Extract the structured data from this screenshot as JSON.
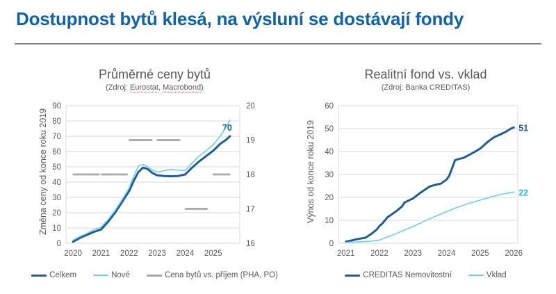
{
  "page": {
    "title": "Dostupnost bytů klesá, na výsluní se dostávají fondy",
    "title_color": "#1062AB",
    "separator_color": "#7F7F7F",
    "background": "#FFFFFF"
  },
  "colors": {
    "grid": "#D9D9D9",
    "axis_text": "#595959",
    "dark_blue": "#1F5C99",
    "light_cyan": "#6FCFE2",
    "gray_series": "#A6A6A6"
  },
  "chart_data": [
    {
      "type": "line",
      "title": "Průměrné ceny bytů",
      "subtitle_parts": [
        {
          "text": "(Zdroj: "
        },
        {
          "text": "Eurostat",
          "underline": true
        },
        {
          "text": ", "
        },
        {
          "text": "Macrobond",
          "underline": true
        },
        {
          "text": ")"
        }
      ],
      "ylabel": "Změna ceny od konce roku 2019",
      "axes": {
        "x": {
          "min": 2019.75,
          "max": 2025.95,
          "ticks": [
            2020,
            2021,
            2022,
            2023,
            2024,
            2025
          ]
        },
        "y_left": {
          "min": 0,
          "max": 90,
          "ticks": [
            0,
            10,
            20,
            30,
            40,
            50,
            60,
            70,
            80,
            90
          ]
        },
        "y_right": {
          "min": 16,
          "max": 20,
          "ticks": [
            16,
            17,
            18,
            19,
            20
          ]
        }
      },
      "series": [
        {
          "name": "Celkem",
          "color": "#1F5C99",
          "width": 3,
          "axis": "left",
          "x": [
            2020,
            2020.25,
            2020.5,
            2020.75,
            2021,
            2021.25,
            2021.5,
            2021.75,
            2022,
            2022.17,
            2022.33,
            2022.5,
            2022.67,
            2022.83,
            2023,
            2023.25,
            2023.5,
            2023.75,
            2024,
            2024.25,
            2024.5,
            2024.75,
            2025,
            2025.25,
            2025.45,
            2025.6
          ],
          "values": [
            1,
            3.5,
            5.5,
            7.5,
            9,
            14,
            20,
            27,
            34,
            41,
            46.5,
            49.5,
            48.5,
            46,
            44.5,
            44,
            43.8,
            44,
            45,
            49.5,
            53.5,
            57,
            60.5,
            65,
            67.5,
            70
          ],
          "end_label": {
            "text": "70",
            "dx": -4,
            "dy": -8,
            "color": "#1F5C99"
          }
        },
        {
          "name": "Nové",
          "color": "#6FCFE2",
          "width": 1.6,
          "axis": "left",
          "x": [
            2020,
            2020.25,
            2020.5,
            2020.75,
            2021,
            2021.25,
            2021.5,
            2021.75,
            2022,
            2022.17,
            2022.33,
            2022.5,
            2022.67,
            2022.83,
            2023,
            2023.25,
            2023.5,
            2023.75,
            2024,
            2024.25,
            2024.5,
            2024.75,
            2025,
            2025.25,
            2025.45,
            2025.6
          ],
          "values": [
            2,
            4.5,
            6.5,
            9,
            10.5,
            15.5,
            21.5,
            28.5,
            36,
            44,
            50.5,
            51.5,
            50,
            48,
            46.5,
            47.5,
            48.3,
            47.8,
            47.5,
            52.5,
            57,
            60.5,
            64.5,
            70,
            75.5,
            80.5
          ]
        },
        {
          "name": "Cena bytů vs. příjem (PHA, PO)",
          "color": "#A6A6A6",
          "width": 2.8,
          "axis": "right",
          "segments": [
            [
              2020.02,
              2020.92,
              18
            ],
            [
              2021.02,
              2021.92,
              18
            ],
            [
              2022.02,
              2022.8,
              19
            ],
            [
              2023.02,
              2023.8,
              19
            ],
            [
              2024.02,
              2024.78,
              17
            ],
            [
              2025.02,
              2025.58,
              18
            ]
          ]
        }
      ]
    },
    {
      "type": "line",
      "title": "Realitní fond vs. vklad",
      "subtitle_parts": [
        {
          "text": "(Zdroj: Banka CREDITAS)"
        }
      ],
      "ylabel": "Výnos od konce roku 2019",
      "axes": {
        "x": {
          "min": 2020.78,
          "max": 2026.12,
          "ticks": [
            2021,
            2022,
            2023,
            2024,
            2025,
            2026
          ]
        },
        "y_left": {
          "min": 0,
          "max": 60,
          "ticks": [
            0,
            10,
            20,
            30,
            40,
            50,
            60
          ]
        }
      },
      "series": [
        {
          "name": "CREDITAS Nemovitostní",
          "color": "#1F5C99",
          "width": 3,
          "axis": "left",
          "x": [
            2021,
            2021.17,
            2021.33,
            2021.5,
            2021.58,
            2021.75,
            2021.92,
            2022,
            2022.08,
            2022.25,
            2022.33,
            2022.5,
            2022.67,
            2022.75,
            2022.92,
            2023,
            2023.17,
            2023.25,
            2023.42,
            2023.5,
            2023.67,
            2023.83,
            2024,
            2024.08,
            2024.17,
            2024.25,
            2024.33,
            2024.5,
            2024.67,
            2024.83,
            2025,
            2025.17,
            2025.25,
            2025.42,
            2025.58,
            2025.75,
            2025.92,
            2026
          ],
          "values": [
            0.7,
            1.2,
            1.8,
            2.2,
            2.4,
            4,
            6,
            7.5,
            8.5,
            11.5,
            12.2,
            14,
            16,
            17.8,
            19,
            19.5,
            21.5,
            22.3,
            24,
            24.8,
            25.5,
            26,
            27.8,
            29.5,
            33,
            36.2,
            36.6,
            37.2,
            38.5,
            39.8,
            41.3,
            43.5,
            44.5,
            46.3,
            47.3,
            48.5,
            50,
            50.5
          ],
          "end_label": {
            "text": "51",
            "dx": 14,
            "dy": 5,
            "color": "#1F5C99"
          }
        },
        {
          "name": "Vklad",
          "color": "#6FCFE2",
          "width": 1.6,
          "axis": "left",
          "x": [
            2021,
            2021.25,
            2021.5,
            2021.75,
            2022,
            2022.25,
            2022.5,
            2022.75,
            2023,
            2023.25,
            2023.5,
            2023.75,
            2024,
            2024.25,
            2024.5,
            2024.75,
            2025,
            2025.25,
            2025.5,
            2025.75,
            2026
          ],
          "values": [
            0.4,
            0.5,
            0.7,
            0.9,
            1.4,
            2.8,
            4.2,
            5.8,
            7.3,
            9,
            10.7,
            12.3,
            13.8,
            15.3,
            16.6,
            17.8,
            18.8,
            19.9,
            20.9,
            21.7,
            22.3
          ],
          "end_label": {
            "text": "22",
            "dx": 14,
            "dy": 5,
            "color": "#2FBCDA"
          }
        }
      ]
    }
  ]
}
